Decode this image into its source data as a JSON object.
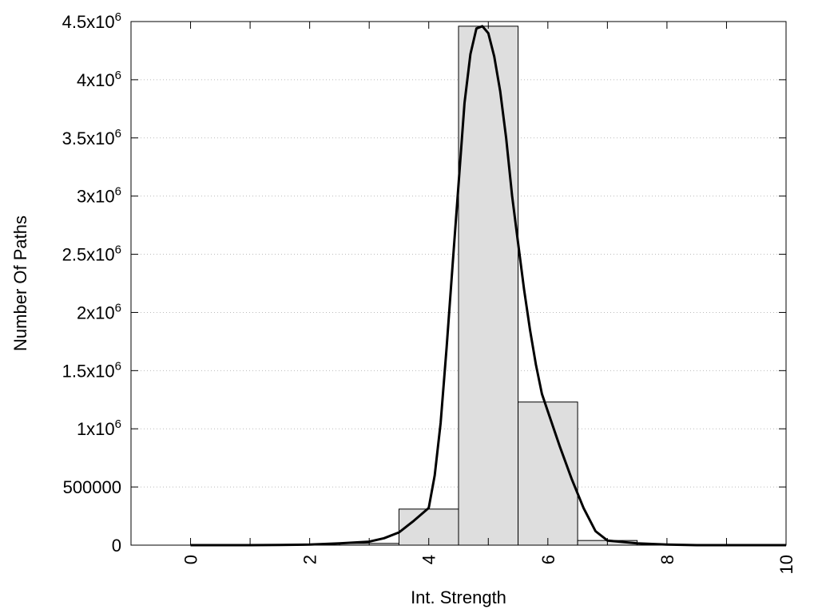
{
  "chart_data": {
    "type": "bar",
    "xlabel": "Int. Strength",
    "ylabel": "Number Of Paths",
    "xlim": [
      -1,
      10
    ],
    "ylim": [
      0,
      4500000
    ],
    "grid": true,
    "x_ticks": [
      0,
      2,
      4,
      6,
      8,
      10
    ],
    "x_tick_labels": [
      "0",
      "2",
      "4",
      "6",
      "8",
      "10"
    ],
    "y_ticks": [
      {
        "value": 0,
        "base": "0",
        "exp": ""
      },
      {
        "value": 500000,
        "base": "500000",
        "exp": ""
      },
      {
        "value": 1000000,
        "base": "1x10",
        "exp": "6"
      },
      {
        "value": 1500000,
        "base": "1.5x10",
        "exp": "6"
      },
      {
        "value": 2000000,
        "base": "2x10",
        "exp": "6"
      },
      {
        "value": 2500000,
        "base": "2.5x10",
        "exp": "6"
      },
      {
        "value": 3000000,
        "base": "3x10",
        "exp": "6"
      },
      {
        "value": 3500000,
        "base": "3.5x10",
        "exp": "6"
      },
      {
        "value": 4000000,
        "base": "4x10",
        "exp": "6"
      },
      {
        "value": 4500000,
        "base": "4.5x10",
        "exp": "6"
      }
    ],
    "bin_width": 1,
    "bars": [
      {
        "x": 0,
        "value": 0
      },
      {
        "x": 1,
        "value": 0
      },
      {
        "x": 2,
        "value": 0
      },
      {
        "x": 3,
        "value": 15000
      },
      {
        "x": 4,
        "value": 310000
      },
      {
        "x": 5,
        "value": 4460000
      },
      {
        "x": 6,
        "value": 1230000
      },
      {
        "x": 7,
        "value": 40000
      },
      {
        "x": 8,
        "value": 0
      },
      {
        "x": 9,
        "value": 0
      },
      {
        "x": 10,
        "value": 0
      }
    ],
    "curve": {
      "x": [
        0,
        0.5,
        1,
        1.5,
        2,
        2.5,
        3,
        3.25,
        3.5,
        3.75,
        4.0,
        4.1,
        4.2,
        4.3,
        4.4,
        4.5,
        4.6,
        4.7,
        4.8,
        4.9,
        5.0,
        5.1,
        5.2,
        5.3,
        5.4,
        5.5,
        5.6,
        5.7,
        5.8,
        5.9,
        6.0,
        6.2,
        6.4,
        6.6,
        6.8,
        7.0,
        7.5,
        8.0,
        8.5,
        9.0,
        9.5,
        10.0
      ],
      "y": [
        0,
        0,
        0,
        2000,
        5000,
        15000,
        30000,
        60000,
        110000,
        210000,
        320000,
        600000,
        1050000,
        1700000,
        2400000,
        3100000,
        3800000,
        4220000,
        4440000,
        4460000,
        4400000,
        4200000,
        3900000,
        3500000,
        3000000,
        2600000,
        2200000,
        1850000,
        1550000,
        1300000,
        1150000,
        850000,
        570000,
        320000,
        120000,
        40000,
        15000,
        5000,
        0,
        0,
        0,
        0
      ]
    }
  }
}
